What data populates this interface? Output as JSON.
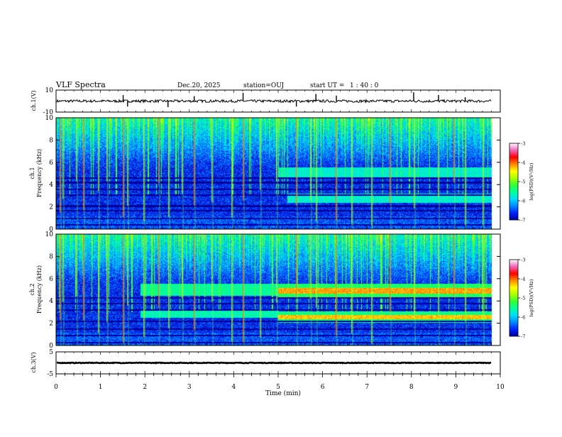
{
  "header": {
    "title": "VLF Spectra",
    "date": "Dec.20, 2025",
    "station": "station=OUJ",
    "start_label": "start  UT =",
    "start_time": "1 : 40 : 0"
  },
  "chart_data": [
    {
      "type": "line",
      "name": "ch1-waveform",
      "ylabel": "ch.1(V)",
      "ylim": [
        -10,
        10
      ],
      "y_tick_labels": [
        "10",
        "-10"
      ],
      "xlim": [
        0,
        10
      ],
      "trace_xmax": 9.8,
      "baseline": 0,
      "noise_amplitude": 1.2,
      "spikes": [
        {
          "t": 1.51,
          "v": 5.5
        },
        {
          "t": 1.61,
          "v": -5.0
        },
        {
          "t": 2.52,
          "v": -5.5
        },
        {
          "t": 3.11,
          "v": 4.5
        },
        {
          "t": 4.21,
          "v": 7.5
        },
        {
          "t": 5.41,
          "v": -5.0
        },
        {
          "t": 5.85,
          "v": 6.5
        },
        {
          "t": 6.31,
          "v": 5.0
        },
        {
          "t": 8.05,
          "v": 8.0
        },
        {
          "t": 8.61,
          "v": 5.5
        },
        {
          "t": 9.21,
          "v": 3.5
        }
      ]
    },
    {
      "type": "heatmap",
      "name": "ch1-spectrogram",
      "ylabel": "ch.1\nFrequency (kHz)",
      "ylim": [
        0,
        10
      ],
      "y_ticks": [
        0,
        2,
        4,
        6,
        8,
        10
      ],
      "xlim": [
        0,
        10
      ],
      "data_xmax": 9.8,
      "dark_bands_khz": [
        0.4,
        1.0,
        1.7,
        2.1,
        3.1,
        3.6,
        4.2,
        4.6
      ],
      "enhanced_bands": [
        {
          "t_start": 5.0,
          "t_end": 9.8,
          "f_low": 4.6,
          "f_high": 5.6,
          "level": -5.6
        },
        {
          "t_start": 5.2,
          "t_end": 9.8,
          "f_low": 2.4,
          "f_high": 3.2,
          "level": -5.6
        }
      ],
      "spike_times": [
        0.08,
        0.15,
        0.45,
        0.6,
        0.95,
        1.13,
        1.5,
        1.6,
        1.96,
        2.3,
        2.52,
        2.83,
        3.1,
        3.5,
        3.95,
        4.2,
        4.58,
        4.95,
        5.4,
        5.72,
        5.85,
        6.3,
        6.65,
        7.1,
        7.5,
        8.05,
        8.6,
        8.95,
        9.2,
        9.6
      ]
    },
    {
      "type": "heatmap",
      "name": "ch2-spectrogram",
      "ylabel": "ch.2\nFrequency (kHz)",
      "ylim": [
        0,
        10
      ],
      "y_ticks": [
        0,
        2,
        4,
        6,
        8,
        10
      ],
      "xlim": [
        0,
        10
      ],
      "data_xmax": 9.8,
      "dark_bands_khz": [
        0.3,
        0.9,
        1.5,
        2.2,
        3.2,
        3.8,
        4.3
      ],
      "enhanced_bands": [
        {
          "t_start": 1.9,
          "t_end": 5.0,
          "f_low": 4.5,
          "f_high": 5.6,
          "level": -5.4
        },
        {
          "t_start": 1.9,
          "t_end": 5.0,
          "f_low": 2.5,
          "f_high": 3.2,
          "level": -5.5
        },
        {
          "t_start": 5.0,
          "t_end": 9.8,
          "f_low": 4.7,
          "f_high": 5.2,
          "level": -3.9
        },
        {
          "t_start": 5.0,
          "t_end": 9.8,
          "f_low": 2.4,
          "f_high": 2.8,
          "level": -4.0
        },
        {
          "t_start": 5.0,
          "t_end": 9.8,
          "f_low": 4.3,
          "f_high": 5.6,
          "level": -5.2
        },
        {
          "t_start": 5.0,
          "t_end": 9.8,
          "f_low": 2.1,
          "f_high": 3.1,
          "level": -5.3
        }
      ],
      "spike_times": [
        0.08,
        0.15,
        0.45,
        0.6,
        0.95,
        1.13,
        1.5,
        1.6,
        1.96,
        2.3,
        2.52,
        2.83,
        3.1,
        3.5,
        3.95,
        4.2,
        4.58,
        4.95,
        5.4,
        5.72,
        5.85,
        6.3,
        6.65,
        7.1,
        7.5,
        8.05,
        8.6,
        8.95,
        9.2,
        9.6
      ]
    },
    {
      "type": "line",
      "name": "ch3-waveform",
      "ylabel": "ch.3(V)",
      "ylim": [
        -5,
        5
      ],
      "y_tick_labels": [
        "5",
        "-5"
      ],
      "xlim": [
        0,
        10
      ],
      "trace_xmax": 9.8,
      "baseline": 0,
      "noise_amplitude": 0.15
    }
  ],
  "x_axis": {
    "label": "Time (min)",
    "ticks": [
      "0",
      "1",
      "2",
      "3",
      "4",
      "5",
      "6",
      "7",
      "8",
      "9",
      "10"
    ]
  },
  "colorbar": {
    "label": "log(PSD)(V²/Hz)",
    "min": -7,
    "max": -3,
    "tick_labels": [
      "-3",
      "-4",
      "-5",
      "-6",
      "-7"
    ],
    "colors": [
      "#000099",
      "#0022ff",
      "#0088ff",
      "#00ddff",
      "#00ff99",
      "#33ff33",
      "#aaff00",
      "#ffff00",
      "#ff8800",
      "#ff0000",
      "#ee66bb",
      "#ffffff"
    ]
  }
}
